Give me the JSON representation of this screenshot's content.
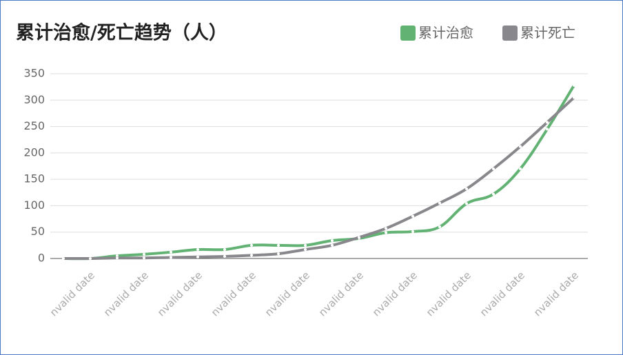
{
  "chart_data": {
    "type": "line",
    "title": "累计治愈/死亡趋势（人）",
    "categories": [
      null,
      "nvalid date",
      null,
      "nvalid date",
      null,
      "nvalid date",
      null,
      "nvalid date",
      null,
      "nvalid date",
      null,
      "nvalid date",
      null,
      "nvalid date",
      null,
      "nvalid date",
      null,
      "nvalid date",
      null,
      "nvalid date"
    ],
    "series": [
      {
        "name": "累计治愈",
        "color": "#62b274",
        "values": [
          0,
          0,
          5,
          8,
          12,
          17,
          17,
          25,
          25,
          25,
          34,
          38,
          49,
          51,
          60,
          104,
          122,
          170,
          245,
          328
        ]
      },
      {
        "name": "累计死亡",
        "color": "#88888c",
        "values": [
          0,
          0,
          1,
          1,
          2,
          3,
          4,
          6,
          9,
          17,
          25,
          40,
          57,
          80,
          105,
          132,
          170,
          212,
          258,
          305
        ]
      }
    ],
    "ylim": [
      0,
      350
    ],
    "yticks": [
      0,
      50,
      100,
      150,
      200,
      250,
      300,
      350
    ],
    "grid": true,
    "legend": "top-right"
  }
}
